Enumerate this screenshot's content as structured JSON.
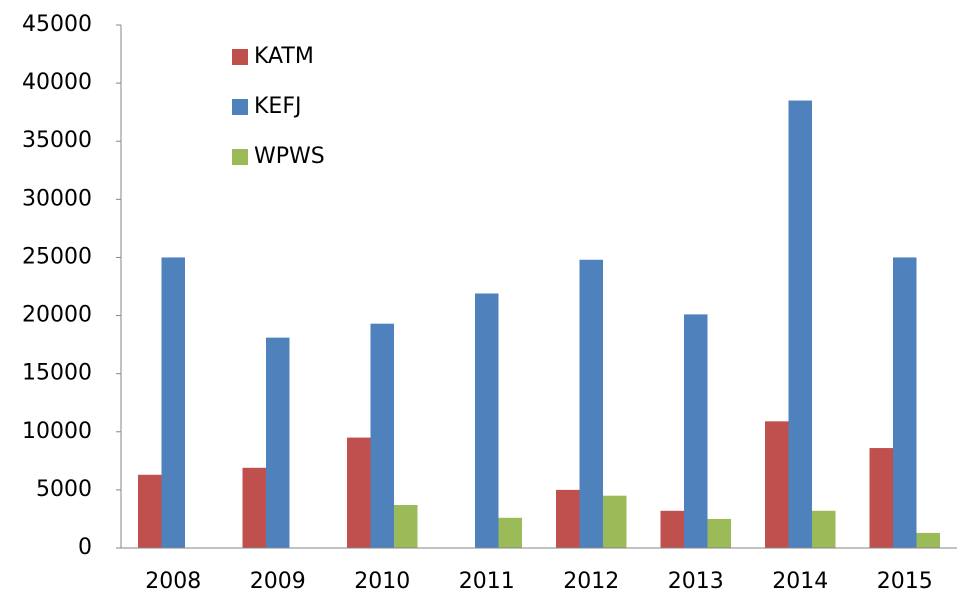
{
  "chart_data": {
    "type": "bar",
    "categories": [
      "2008",
      "2009",
      "2010",
      "2011",
      "2012",
      "2013",
      "2014",
      "2015"
    ],
    "series": [
      {
        "name": "KATM",
        "color": "#c0504d",
        "values": [
          6300,
          6900,
          9500,
          0,
          5000,
          3200,
          10900,
          8600
        ]
      },
      {
        "name": "KEFJ",
        "color": "#4f81bd",
        "values": [
          25000,
          18100,
          19300,
          21900,
          24800,
          20100,
          38500,
          25000
        ]
      },
      {
        "name": "WPWS",
        "color": "#9bbb59",
        "values": [
          0,
          0,
          3700,
          2600,
          4500,
          2500,
          3200,
          1300
        ]
      }
    ],
    "ylim": [
      0,
      45000
    ],
    "yticks": [
      0,
      5000,
      10000,
      15000,
      20000,
      25000,
      30000,
      35000,
      40000,
      45000
    ],
    "legend": "upper-left",
    "grid": false
  }
}
